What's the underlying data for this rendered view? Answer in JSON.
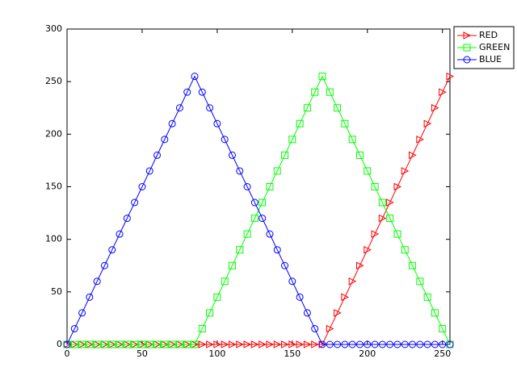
{
  "chart_data": {
    "type": "line",
    "x": [
      0,
      5,
      10,
      15,
      20,
      25,
      30,
      35,
      40,
      45,
      50,
      55,
      60,
      65,
      70,
      75,
      80,
      85,
      90,
      95,
      100,
      105,
      110,
      115,
      120,
      125,
      130,
      135,
      140,
      145,
      150,
      155,
      160,
      165,
      170,
      175,
      180,
      185,
      190,
      195,
      200,
      205,
      210,
      215,
      220,
      225,
      230,
      235,
      240,
      245,
      250,
      255
    ],
    "series": [
      {
        "name": "RED",
        "color": "#ff0000",
        "marker": "triangle-right",
        "values": [
          0,
          0,
          0,
          0,
          0,
          0,
          0,
          0,
          0,
          0,
          0,
          0,
          0,
          0,
          0,
          0,
          0,
          0,
          0,
          0,
          0,
          0,
          0,
          0,
          0,
          0,
          0,
          0,
          0,
          0,
          0,
          0,
          0,
          0,
          0,
          15,
          30,
          45,
          60,
          75,
          90,
          105,
          120,
          135,
          150,
          165,
          180,
          195,
          210,
          225,
          240,
          255
        ]
      },
      {
        "name": "GREEN",
        "color": "#00ff00",
        "marker": "square",
        "values": [
          0,
          0,
          0,
          0,
          0,
          0,
          0,
          0,
          0,
          0,
          0,
          0,
          0,
          0,
          0,
          0,
          0,
          0,
          15,
          30,
          45,
          60,
          75,
          90,
          105,
          120,
          135,
          150,
          165,
          180,
          195,
          210,
          225,
          240,
          255,
          240,
          225,
          210,
          195,
          180,
          165,
          150,
          135,
          120,
          105,
          90,
          75,
          60,
          45,
          30,
          15,
          0
        ]
      },
      {
        "name": "BLUE",
        "color": "#0000ff",
        "marker": "circle",
        "values": [
          0,
          15,
          30,
          45,
          60,
          75,
          90,
          105,
          120,
          135,
          150,
          165,
          180,
          195,
          210,
          225,
          240,
          255,
          240,
          225,
          210,
          195,
          180,
          165,
          150,
          135,
          120,
          105,
          90,
          75,
          60,
          45,
          30,
          15,
          0,
          0,
          0,
          0,
          0,
          0,
          0,
          0,
          0,
          0,
          0,
          0,
          0,
          0,
          0,
          0,
          0,
          0
        ]
      }
    ],
    "xlim": [
      0,
      255
    ],
    "xticks": [
      0,
      50,
      100,
      150,
      200,
      250
    ],
    "ylim": [
      0,
      300
    ],
    "yticks": [
      0,
      50,
      100,
      150,
      200,
      250,
      300
    ],
    "grid": false,
    "legend": "outside upper right"
  }
}
